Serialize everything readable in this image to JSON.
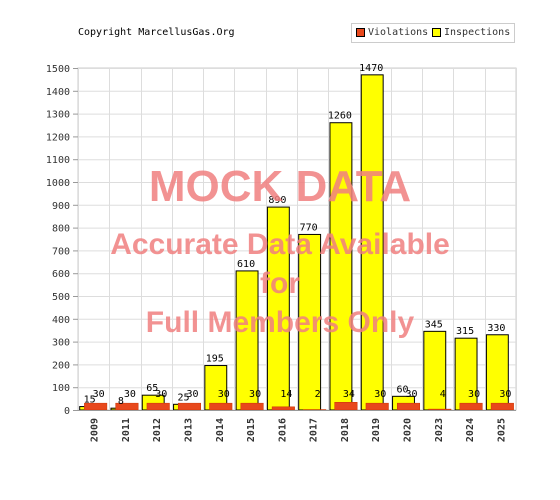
{
  "copyright": "Copyright MarcellusGas.Org",
  "legend": [
    {
      "label": "Violations",
      "color": "#e8481c"
    },
    {
      "label": "Inspections",
      "color": "#ffff00"
    }
  ],
  "watermark": {
    "line1": "MOCK DATA",
    "line2": "Accurate Data Available",
    "line3": "for",
    "line4": "Full Members Only"
  },
  "chart_data": {
    "type": "bar",
    "categories": [
      "2009",
      "2011",
      "2012",
      "2013",
      "2014",
      "2015",
      "2016",
      "2017",
      "2018",
      "2019",
      "2020",
      "2023",
      "2024",
      "2025"
    ],
    "series": [
      {
        "name": "Inspections",
        "color": "#ffff00",
        "values": [
          15,
          8,
          65,
          25,
          195,
          610,
          890,
          770,
          1260,
          1470,
          60,
          345,
          315,
          330
        ]
      },
      {
        "name": "Violations",
        "color": "#e8481c",
        "values": [
          30,
          30,
          30,
          30,
          30,
          30,
          14,
          2,
          34,
          30,
          30,
          4,
          30,
          30
        ]
      }
    ],
    "ylim": [
      0,
      1500
    ],
    "yticks": [
      0,
      100,
      200,
      300,
      400,
      500,
      600,
      700,
      800,
      900,
      1000,
      1100,
      1200,
      1300,
      1400,
      1500
    ],
    "grid": true,
    "legend_position": "top-right"
  }
}
